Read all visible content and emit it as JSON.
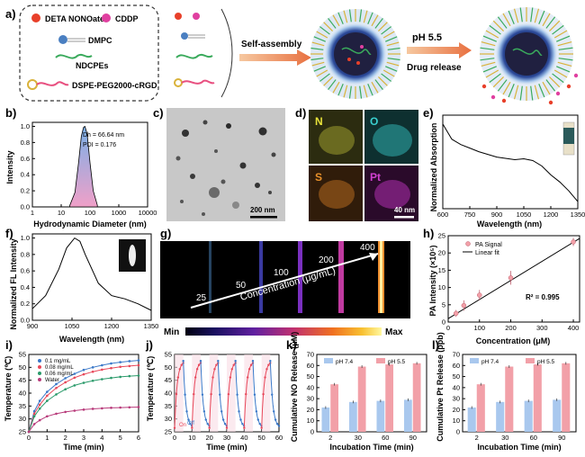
{
  "panels": {
    "a": {
      "label": "a)",
      "legend": [
        {
          "text": "DETA NONOate",
          "color": "#e8402a"
        },
        {
          "text": "CDDP",
          "color": "#e040a0"
        },
        {
          "text": "DMPC",
          "color": "#4a7fc1"
        },
        {
          "text": "NDCPEs",
          "color": "#3aaa5c"
        },
        {
          "text": "DSPE-PEG2000-cRGD",
          "color": "#d9b23a"
        }
      ],
      "step1": "Self-assembly",
      "step2": "pH 5.5",
      "step3": "Drug release"
    },
    "b": {
      "label": "b)",
      "dh": "Dh = 66.64 nm",
      "pdi": "PDI = 0.176",
      "xlabel": "Hydrodynamic Diameter (nm)",
      "ylabel": "Intensity",
      "yticks": [
        "0.0",
        "0.2",
        "0.4",
        "0.6",
        "0.8",
        "1.0"
      ],
      "xticks": [
        "1",
        "10",
        "100",
        "1000",
        "10000"
      ]
    },
    "c": {
      "label": "c)",
      "scale": "200 nm"
    },
    "d": {
      "label": "d)",
      "scale": "40 nm",
      "elements": [
        {
          "sym": "N",
          "color": "#e8e23a",
          "bg": "#2c2c10"
        },
        {
          "sym": "O",
          "color": "#3ad0d0",
          "bg": "#0e3030"
        },
        {
          "sym": "S",
          "color": "#e8902a",
          "bg": "#301c0a"
        },
        {
          "sym": "Pt",
          "color": "#d040d0",
          "bg": "#2a0a2a"
        }
      ]
    },
    "e": {
      "label": "e)",
      "xlabel": "Wavelength (nm)",
      "ylabel": "Normalized Absorption",
      "xticks": [
        "600",
        "750",
        "900",
        "1050",
        "1200",
        "1350"
      ]
    },
    "f": {
      "label": "f)",
      "xlabel": "Wavelength (nm)",
      "ylabel": "Normalized FL Intensity",
      "yticks": [
        "0.0",
        "0.2",
        "0.4",
        "0.6",
        "0.8",
        "1.0"
      ],
      "xticks": [
        "900",
        "1050",
        "1200",
        "1350"
      ]
    },
    "g": {
      "label": "g)",
      "concentrations": [
        "25",
        "50",
        "100",
        "200",
        "400"
      ],
      "arrow_label": "Concentration (μg/mL)",
      "min": "Min",
      "max": "Max"
    },
    "h": {
      "label": "h)",
      "ylabel": "PA Intensity (×10⁵)",
      "xlabel": "Concentration (μM)",
      "legend_signal": "PA Signal",
      "legend_fit": "Linear fit",
      "r2": "R² = 0.995",
      "yticks": [
        "0",
        "5",
        "10",
        "15",
        "20",
        "25"
      ],
      "xticks": [
        "0",
        "100",
        "200",
        "300",
        "400"
      ]
    },
    "i": {
      "label": "i)",
      "ylabel": "Temperature (℃)",
      "xlabel": "Time (min)",
      "yticks": [
        "25",
        "30",
        "35",
        "40",
        "45",
        "50",
        "55"
      ],
      "xticks": [
        "0",
        "1",
        "2",
        "3",
        "4",
        "5",
        "6"
      ],
      "legend": [
        "0.1 mg/mL",
        "0.08 mg/mL",
        "0.06 mg/mL",
        "Water"
      ]
    },
    "j": {
      "label": "j)",
      "ylabel": "Temperature (℃)",
      "xlabel": "Time (min)",
      "yticks": [
        "25",
        "30",
        "35",
        "40",
        "45",
        "50",
        "55"
      ],
      "xticks": [
        "0",
        "10",
        "20",
        "30",
        "40",
        "50",
        "60"
      ],
      "on": "On",
      "off": "Off"
    },
    "k": {
      "label": "k)",
      "ylabel": "Cumulative NO Release (μM)",
      "xlabel": "Incubation Time (min)",
      "legend": [
        "pH 7.4",
        "pH 5.5"
      ],
      "categories": [
        "2",
        "30",
        "60",
        "90"
      ],
      "yticks": [
        "0",
        "10",
        "20",
        "30",
        "40",
        "50",
        "60",
        "70"
      ]
    },
    "l": {
      "label": "l)",
      "ylabel": "Cumulative Pt Release (ppb)",
      "xlabel": "Incubation Time (min)",
      "legend": [
        "pH 7.4",
        "pH 5.5"
      ],
      "categories": [
        "2",
        "30",
        "60",
        "90"
      ],
      "yticks": [
        "0",
        "10",
        "20",
        "30",
        "40",
        "50",
        "60",
        "70"
      ]
    }
  },
  "chart_data": [
    {
      "panel": "b",
      "type": "area",
      "x": [
        20,
        30,
        40,
        50,
        60,
        66.64,
        80,
        100,
        130,
        180
      ],
      "y": [
        0.02,
        0.18,
        0.55,
        0.88,
        0.99,
        1.0,
        0.9,
        0.55,
        0.2,
        0.02
      ],
      "xscale": "log",
      "xlim": [
        1,
        10000
      ],
      "ylim": [
        0,
        1.05
      ]
    },
    {
      "panel": "e",
      "type": "line",
      "x": [
        600,
        650,
        700,
        750,
        800,
        900,
        1000,
        1050,
        1100,
        1150,
        1200,
        1250,
        1300,
        1350
      ],
      "y": [
        0.95,
        0.78,
        0.72,
        0.68,
        0.64,
        0.58,
        0.55,
        0.56,
        0.54,
        0.48,
        0.38,
        0.3,
        0.2,
        0.08
      ],
      "xlim": [
        600,
        1350
      ],
      "ylim": [
        0,
        1.05
      ]
    },
    {
      "panel": "f",
      "type": "line",
      "x": [
        900,
        950,
        1000,
        1030,
        1060,
        1080,
        1100,
        1150,
        1200,
        1250,
        1300,
        1350
      ],
      "y": [
        0.14,
        0.3,
        0.62,
        0.88,
        1.0,
        0.96,
        0.8,
        0.45,
        0.3,
        0.26,
        0.2,
        0.12
      ],
      "xlim": [
        900,
        1350
      ],
      "ylim": [
        0,
        1.05
      ]
    },
    {
      "panel": "h",
      "type": "scatter",
      "x": [
        25,
        50,
        100,
        200,
        400
      ],
      "y": [
        2.5,
        4.8,
        7.8,
        12.8,
        23.2
      ],
      "err": [
        1.0,
        1.5,
        1.5,
        2.0,
        1.2
      ],
      "fit": [
        [
          0,
          1.0
        ],
        [
          420,
          24.2
        ]
      ],
      "xlim": [
        0,
        420
      ],
      "ylim": [
        0,
        25
      ]
    },
    {
      "panel": "i",
      "type": "line",
      "x": [
        0,
        0.3,
        0.6,
        1,
        1.5,
        2,
        2.5,
        3,
        3.5,
        4,
        4.5,
        5,
        5.5,
        6
      ],
      "xlim": [
        0,
        6
      ],
      "ylim": [
        25,
        55
      ],
      "series": [
        {
          "name": "0.1 mg/mL",
          "color": "#3a78c8",
          "y": [
            25,
            33,
            37,
            40.5,
            43.5,
            45.8,
            47.5,
            49,
            50,
            50.8,
            51.5,
            52,
            52.4,
            52.7
          ]
        },
        {
          "name": "0.08 mg/mL",
          "color": "#e8485a",
          "y": [
            25,
            32,
            35.5,
            39,
            42,
            44.2,
            46,
            47.3,
            48.3,
            49.1,
            49.7,
            50.2,
            50.5,
            50.8
          ]
        },
        {
          "name": "0.06 mg/mL",
          "color": "#2a9a6a",
          "y": [
            25,
            31,
            34,
            37,
            39.5,
            41.5,
            43,
            44,
            44.8,
            45.4,
            45.9,
            46.3,
            46.6,
            46.8
          ]
        },
        {
          "name": "Water",
          "color": "#b83a7a",
          "y": [
            25,
            28,
            29.5,
            31,
            32,
            32.7,
            33.2,
            33.6,
            33.9,
            34.1,
            34.3,
            34.4,
            34.5,
            34.6
          ]
        }
      ]
    },
    {
      "panel": "j",
      "type": "line",
      "xlim": [
        0,
        60
      ],
      "ylim": [
        25,
        55
      ],
      "cycles": 6,
      "peak": 52.5,
      "base": 26.5,
      "period": 10
    },
    {
      "panel": "k",
      "type": "bar",
      "categories": [
        "2",
        "30",
        "60",
        "90"
      ],
      "ylim": [
        0,
        70
      ],
      "series": [
        {
          "name": "pH 7.4",
          "color": "#a9c8ee",
          "values": [
            22,
            27,
            28,
            29
          ]
        },
        {
          "name": "pH 5.5",
          "color": "#f2a0a8",
          "values": [
            43,
            59,
            61,
            62
          ]
        }
      ]
    },
    {
      "panel": "l",
      "type": "bar",
      "categories": [
        "2",
        "30",
        "60",
        "90"
      ],
      "ylim": [
        0,
        70
      ],
      "series": [
        {
          "name": "pH 7.4",
          "color": "#a9c8ee",
          "values": [
            22,
            27,
            28,
            29
          ]
        },
        {
          "name": "pH 5.5",
          "color": "#f2a0a8",
          "values": [
            43,
            59,
            61,
            62
          ]
        }
      ]
    }
  ]
}
